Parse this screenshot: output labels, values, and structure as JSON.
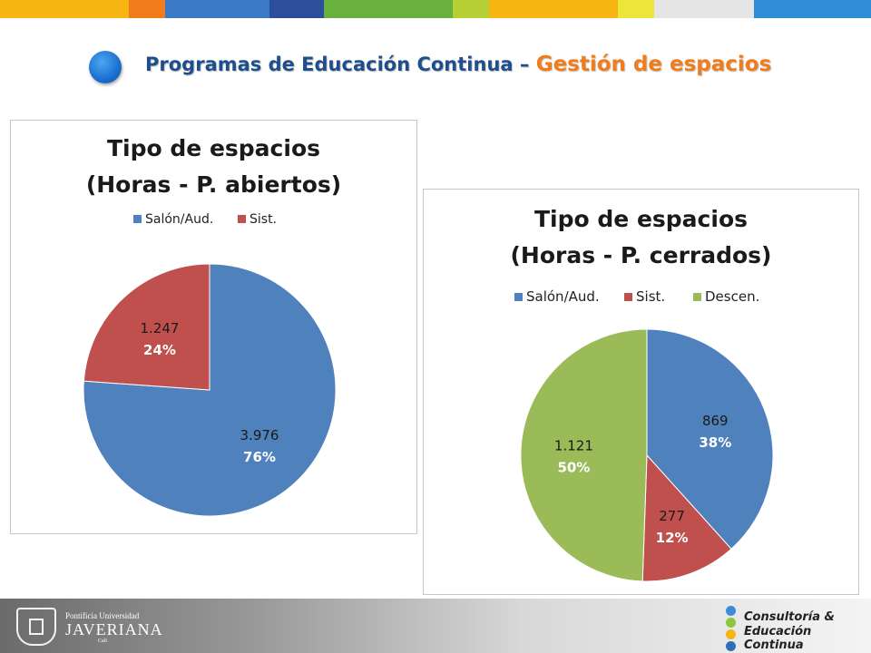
{
  "slide": {
    "title_part1": "Programas de Educación Continua – ",
    "title_part2": "Gestión de espacios",
    "top_bar_colors": [
      "#f7b512",
      "#f07c1c",
      "#3a79c6",
      "#2c4e9b",
      "#69b13e",
      "#b5cf35",
      "#f7b512",
      "#ede63a",
      "#e5e5e5",
      "#2e8dd5"
    ]
  },
  "footer": {
    "university_small": "Pontificia Universidad",
    "university_name": "JAVERIANA",
    "university_city": "Cali",
    "brand_line1": "Consultoría &",
    "brand_line2": "Educación Continua",
    "brand_dot_colors": [
      "#3a8dd6",
      "#8cc63f",
      "#f7b512",
      "#2e6fb8"
    ]
  },
  "chart_data": [
    {
      "type": "pie",
      "title": "Tipo de espacios",
      "subtitle": "(Horas - P. abiertos)",
      "legend_position": "top",
      "series": [
        {
          "name": "Salón/Aud.",
          "value": 3976,
          "value_label": "3.976",
          "percent_label": "76%",
          "color": "#4f81bd"
        },
        {
          "name": "Sist.",
          "value": 1247,
          "value_label": "1.247",
          "percent_label": "24%",
          "color": "#c0504d"
        }
      ]
    },
    {
      "type": "pie",
      "title": "Tipo de espacios",
      "subtitle": "(Horas - P. cerrados)",
      "legend_position": "top",
      "series": [
        {
          "name": "Salón/Aud.",
          "value": 869,
          "value_label": "869",
          "percent_label": "38%",
          "color": "#4f81bd"
        },
        {
          "name": "Sist.",
          "value": 277,
          "value_label": "277",
          "percent_label": "12%",
          "color": "#c0504d"
        },
        {
          "name": "Descen.",
          "value": 1121,
          "value_label": "1.121",
          "percent_label": "50%",
          "color": "#9bbb59"
        }
      ]
    }
  ]
}
